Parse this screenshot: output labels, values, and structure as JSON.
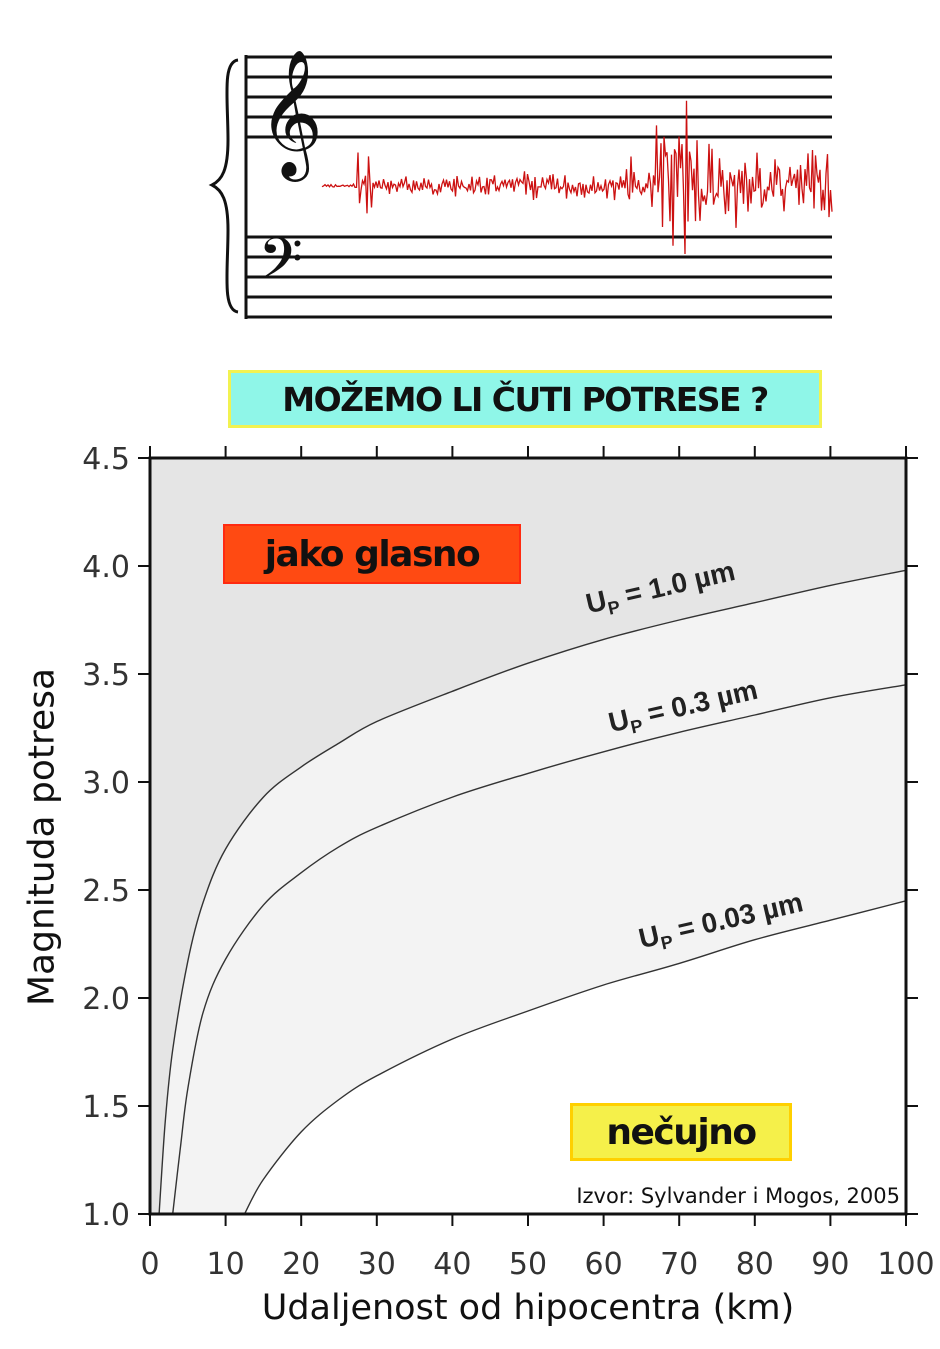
{
  "header": {
    "title": "MOŽEMO LI ČUTI POTRESE ?",
    "treble_clef_glyph": "𝄞",
    "bass_clef_glyph": "𝄢",
    "waveform_color": "#cc1111"
  },
  "regions": {
    "loud_label": "jako glasno",
    "loud_color": "#ff4a12",
    "quiet_label": "nečujno",
    "quiet_color": "#f5f04a"
  },
  "source": "Izvor: Sylvander i Mogos, 2005",
  "chart_data": {
    "type": "line",
    "xlabel": "Udaljenost od hipocentra (km)",
    "ylabel": "Magnituda potresa",
    "xlim": [
      0,
      100
    ],
    "ylim": [
      1.0,
      4.5
    ],
    "x_ticks": [
      "0",
      "10",
      "20",
      "30",
      "40",
      "50",
      "60",
      "70",
      "80",
      "90",
      "100"
    ],
    "y_ticks": [
      "1.0",
      "1.5",
      "2.0",
      "2.5",
      "3.0",
      "3.5",
      "4.0",
      "4.5"
    ],
    "grid": false,
    "series": [
      {
        "name": "UP = 1.0 µm",
        "label_main": "U",
        "label_sub": "P",
        "label_rest": " = 1.0 µm",
        "x": [
          1.2,
          2,
          3,
          5,
          7,
          10,
          15,
          20,
          25,
          30,
          40,
          50,
          60,
          70,
          80,
          90,
          100
        ],
        "y": [
          1.0,
          1.42,
          1.76,
          2.17,
          2.44,
          2.69,
          2.93,
          3.07,
          3.18,
          3.28,
          3.42,
          3.55,
          3.66,
          3.75,
          3.83,
          3.91,
          3.98
        ]
      },
      {
        "name": "UP = 0.3 µm",
        "label_main": "U",
        "label_sub": "P",
        "label_rest": " = 0.3 µm",
        "x": [
          3,
          4,
          5,
          7,
          10,
          15,
          20,
          25,
          30,
          40,
          50,
          60,
          70,
          80,
          90,
          100
        ],
        "y": [
          1.0,
          1.3,
          1.58,
          1.93,
          2.18,
          2.43,
          2.58,
          2.7,
          2.79,
          2.93,
          3.04,
          3.14,
          3.23,
          3.31,
          3.39,
          3.45
        ]
      },
      {
        "name": "UP = 0.03 µm",
        "label_main": "U",
        "label_sub": "P",
        "label_rest": " = 0.03 µm",
        "x": [
          12.5,
          15,
          20,
          25,
          30,
          40,
          50,
          60,
          70,
          80,
          90,
          100
        ],
        "y": [
          1.0,
          1.16,
          1.38,
          1.53,
          1.64,
          1.81,
          1.94,
          2.06,
          2.16,
          2.27,
          2.36,
          2.45
        ]
      }
    ],
    "fills": {
      "loud_region": "#e5e5e5",
      "middle_region": "#f3f3f3",
      "quiet_region": "#ffffff"
    }
  }
}
